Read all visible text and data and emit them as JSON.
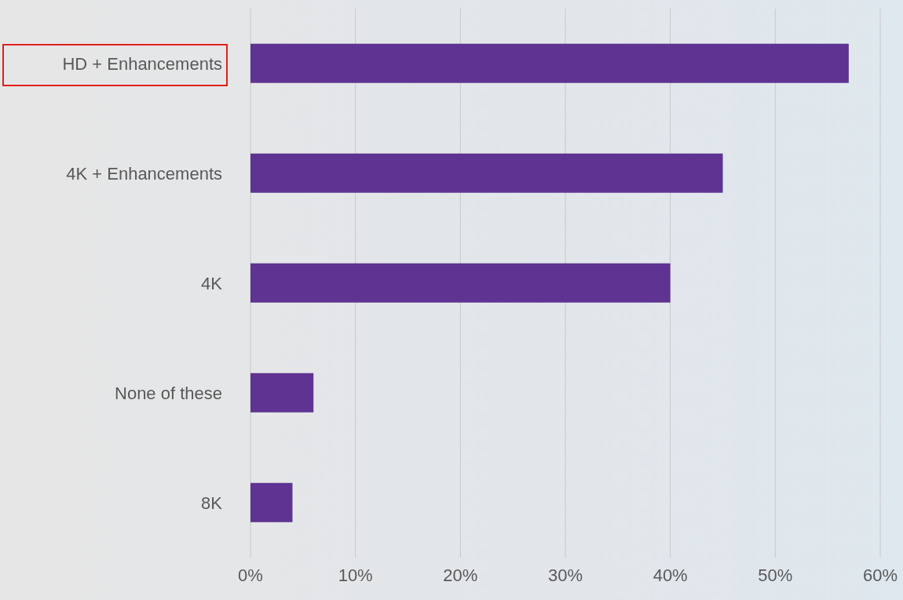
{
  "chart_data": {
    "type": "bar",
    "orientation": "horizontal",
    "categories": [
      "HD + Enhancements",
      "4K + Enhancements",
      "4K ",
      "None of these",
      "8K"
    ],
    "values": [
      0.57,
      0.45,
      0.4,
      0.06,
      0.04
    ],
    "color": "#5e3391",
    "xlim": [
      0,
      0.6
    ],
    "xticks": [
      {
        "value": 0,
        "label": "0%"
      },
      {
        "value": 0.1,
        "label": "10%"
      },
      {
        "value": 0.2,
        "label": "20%"
      },
      {
        "value": 0.3,
        "label": "30%"
      },
      {
        "value": 0.4,
        "label": "40%"
      },
      {
        "value": 0.5,
        "label": "50%"
      },
      {
        "value": 0.6,
        "label": "60%"
      }
    ],
    "grid": "x"
  }
}
